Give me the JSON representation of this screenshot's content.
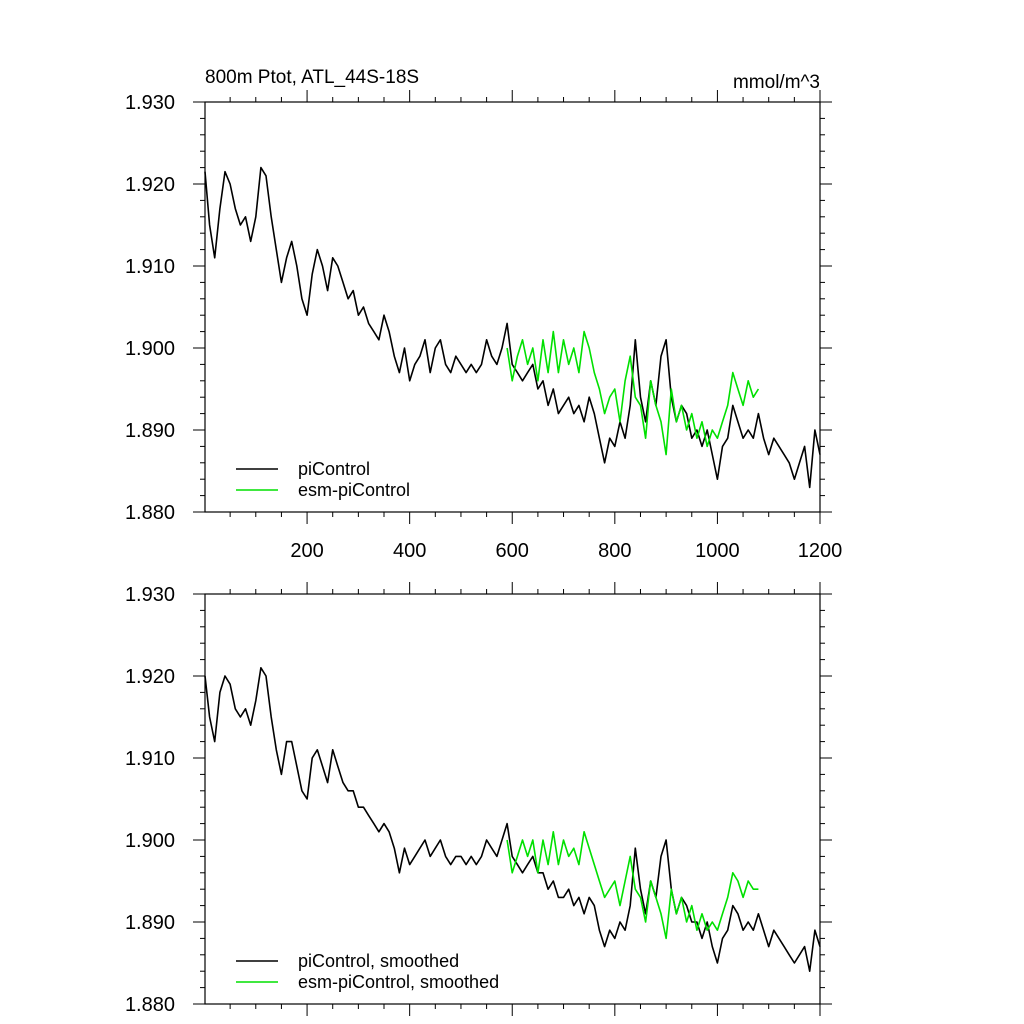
{
  "chart_data": [
    {
      "type": "line",
      "title": "800m Ptot, ATL_44S-18S",
      "units": "mmol/m^3",
      "xlim": [
        1,
        1200
      ],
      "ylim": [
        1.88,
        1.93
      ],
      "xticks": [
        200,
        400,
        600,
        800,
        1000,
        1200
      ],
      "xtick_labels": [
        "200",
        "400",
        "600",
        "800",
        "1000",
        "1200"
      ],
      "yticks": [
        1.88,
        1.89,
        1.9,
        1.91,
        1.92,
        1.93
      ],
      "ytick_labels": [
        "1.880",
        "1.890",
        "1.900",
        "1.910",
        "1.920",
        "1.930"
      ],
      "legend_position": "bottom-left",
      "series": [
        {
          "name": "piControl",
          "color": "#000000",
          "x": [
            1,
            10,
            20,
            30,
            40,
            50,
            60,
            70,
            80,
            90,
            100,
            110,
            120,
            130,
            140,
            150,
            160,
            170,
            180,
            190,
            200,
            210,
            220,
            230,
            240,
            250,
            260,
            270,
            280,
            290,
            300,
            310,
            320,
            330,
            340,
            350,
            360,
            370,
            380,
            390,
            400,
            410,
            420,
            430,
            440,
            450,
            460,
            470,
            480,
            490,
            500,
            510,
            520,
            530,
            540,
            550,
            560,
            570,
            580,
            590,
            600,
            610,
            620,
            630,
            640,
            650,
            660,
            670,
            680,
            690,
            700,
            710,
            720,
            730,
            740,
            750,
            760,
            770,
            780,
            790,
            800,
            810,
            820,
            830,
            840,
            850,
            860,
            870,
            880,
            890,
            900,
            910,
            920,
            930,
            940,
            950,
            960,
            970,
            980,
            990,
            1000,
            1010,
            1020,
            1030,
            1040,
            1050,
            1060,
            1070,
            1080,
            1090,
            1100,
            1110,
            1120,
            1130,
            1140,
            1150,
            1160,
            1170,
            1180,
            1190,
            1200
          ],
          "values": [
            1.9215,
            1.915,
            1.911,
            1.917,
            1.9215,
            1.92,
            1.917,
            1.915,
            1.916,
            1.913,
            1.916,
            1.922,
            1.921,
            1.916,
            1.912,
            1.908,
            1.911,
            1.913,
            1.91,
            1.906,
            1.904,
            1.909,
            1.912,
            1.91,
            1.907,
            1.911,
            1.91,
            1.908,
            1.906,
            1.907,
            1.904,
            1.905,
            1.903,
            1.902,
            1.901,
            1.904,
            1.902,
            1.899,
            1.897,
            1.9,
            1.896,
            1.898,
            1.899,
            1.901,
            1.897,
            1.9,
            1.901,
            1.898,
            1.897,
            1.899,
            1.898,
            1.897,
            1.898,
            1.897,
            1.898,
            1.901,
            1.899,
            1.898,
            1.9,
            1.903,
            1.898,
            1.897,
            1.896,
            1.897,
            1.898,
            1.895,
            1.896,
            1.893,
            1.895,
            1.892,
            1.893,
            1.894,
            1.892,
            1.893,
            1.891,
            1.894,
            1.892,
            1.889,
            1.886,
            1.889,
            1.888,
            1.891,
            1.889,
            1.893,
            1.901,
            1.894,
            1.891,
            1.896,
            1.893,
            1.899,
            1.901,
            1.894,
            1.891,
            1.893,
            1.892,
            1.889,
            1.89,
            1.888,
            1.89,
            1.887,
            1.884,
            1.888,
            1.889,
            1.893,
            1.891,
            1.889,
            1.89,
            1.889,
            1.892,
            1.889,
            1.887,
            1.889,
            1.888,
            1.887,
            1.886,
            1.884,
            1.886,
            1.888,
            1.883,
            1.89,
            1.887
          ]
        },
        {
          "name": "esm-piControl",
          "color": "#00e000",
          "x": [
            590,
            600,
            610,
            620,
            630,
            640,
            650,
            660,
            670,
            680,
            690,
            700,
            710,
            720,
            730,
            740,
            750,
            760,
            770,
            780,
            790,
            800,
            810,
            820,
            830,
            840,
            850,
            860,
            870,
            880,
            890,
            900,
            910,
            920,
            930,
            940,
            950,
            960,
            970,
            980,
            990,
            1000,
            1010,
            1020,
            1030,
            1040,
            1050,
            1060,
            1070,
            1080
          ],
          "values": [
            1.9,
            1.896,
            1.899,
            1.901,
            1.898,
            1.9,
            1.896,
            1.901,
            1.897,
            1.902,
            1.897,
            1.901,
            1.898,
            1.9,
            1.897,
            1.902,
            1.9,
            1.897,
            1.895,
            1.892,
            1.894,
            1.895,
            1.891,
            1.896,
            1.899,
            1.894,
            1.893,
            1.889,
            1.896,
            1.893,
            1.891,
            1.887,
            1.895,
            1.891,
            1.893,
            1.89,
            1.892,
            1.889,
            1.891,
            1.888,
            1.89,
            1.889,
            1.891,
            1.893,
            1.897,
            1.895,
            1.893,
            1.896,
            1.894,
            1.895
          ]
        }
      ]
    },
    {
      "type": "line",
      "title": "",
      "xlim": [
        1,
        1200
      ],
      "ylim": [
        1.88,
        1.93
      ],
      "yticks": [
        1.88,
        1.89,
        1.9,
        1.91,
        1.92,
        1.93
      ],
      "ytick_labels": [
        "1.880",
        "1.890",
        "1.900",
        "1.910",
        "1.920",
        "1.930"
      ],
      "legend_position": "bottom-left",
      "series": [
        {
          "name": "piControl, smoothed",
          "color": "#000000",
          "x": [
            1,
            10,
            20,
            30,
            40,
            50,
            60,
            70,
            80,
            90,
            100,
            110,
            120,
            130,
            140,
            150,
            160,
            170,
            180,
            190,
            200,
            210,
            220,
            230,
            240,
            250,
            260,
            270,
            280,
            290,
            300,
            310,
            320,
            330,
            340,
            350,
            360,
            370,
            380,
            390,
            400,
            410,
            420,
            430,
            440,
            450,
            460,
            470,
            480,
            490,
            500,
            510,
            520,
            530,
            540,
            550,
            560,
            570,
            580,
            590,
            600,
            610,
            620,
            630,
            640,
            650,
            660,
            670,
            680,
            690,
            700,
            710,
            720,
            730,
            740,
            750,
            760,
            770,
            780,
            790,
            800,
            810,
            820,
            830,
            840,
            850,
            860,
            870,
            880,
            890,
            900,
            910,
            920,
            930,
            940,
            950,
            960,
            970,
            980,
            990,
            1000,
            1010,
            1020,
            1030,
            1040,
            1050,
            1060,
            1070,
            1080,
            1090,
            1100,
            1110,
            1120,
            1130,
            1140,
            1150,
            1160,
            1170,
            1180,
            1190,
            1200
          ],
          "values": [
            1.92,
            1.915,
            1.912,
            1.918,
            1.92,
            1.919,
            1.916,
            1.915,
            1.916,
            1.914,
            1.917,
            1.921,
            1.92,
            1.915,
            1.911,
            1.908,
            1.912,
            1.912,
            1.909,
            1.906,
            1.905,
            1.91,
            1.911,
            1.909,
            1.907,
            1.911,
            1.909,
            1.907,
            1.906,
            1.906,
            1.904,
            1.904,
            1.903,
            1.902,
            1.901,
            1.902,
            1.901,
            1.899,
            1.896,
            1.899,
            1.897,
            1.898,
            1.899,
            1.9,
            1.898,
            1.899,
            1.9,
            1.898,
            1.897,
            1.898,
            1.898,
            1.897,
            1.898,
            1.897,
            1.898,
            1.9,
            1.899,
            1.898,
            1.9,
            1.902,
            1.898,
            1.897,
            1.896,
            1.897,
            1.898,
            1.896,
            1.896,
            1.894,
            1.895,
            1.893,
            1.893,
            1.894,
            1.892,
            1.893,
            1.891,
            1.893,
            1.892,
            1.889,
            1.887,
            1.889,
            1.888,
            1.89,
            1.889,
            1.892,
            1.899,
            1.894,
            1.891,
            1.895,
            1.893,
            1.898,
            1.9,
            1.894,
            1.891,
            1.893,
            1.892,
            1.89,
            1.89,
            1.888,
            1.89,
            1.887,
            1.885,
            1.888,
            1.889,
            1.892,
            1.891,
            1.889,
            1.89,
            1.889,
            1.891,
            1.889,
            1.887,
            1.889,
            1.888,
            1.887,
            1.886,
            1.885,
            1.886,
            1.887,
            1.884,
            1.889,
            1.887
          ]
        },
        {
          "name": "esm-piControl, smoothed",
          "color": "#00e000",
          "x": [
            590,
            600,
            610,
            620,
            630,
            640,
            650,
            660,
            670,
            680,
            690,
            700,
            710,
            720,
            730,
            740,
            750,
            760,
            770,
            780,
            790,
            800,
            810,
            820,
            830,
            840,
            850,
            860,
            870,
            880,
            890,
            900,
            910,
            920,
            930,
            940,
            950,
            960,
            970,
            980,
            990,
            1000,
            1010,
            1020,
            1030,
            1040,
            1050,
            1060,
            1070,
            1080
          ],
          "values": [
            1.9,
            1.896,
            1.898,
            1.9,
            1.898,
            1.9,
            1.896,
            1.9,
            1.897,
            1.901,
            1.897,
            1.9,
            1.898,
            1.899,
            1.897,
            1.901,
            1.899,
            1.897,
            1.895,
            1.893,
            1.894,
            1.895,
            1.892,
            1.895,
            1.898,
            1.894,
            1.893,
            1.89,
            1.895,
            1.893,
            1.891,
            1.888,
            1.894,
            1.891,
            1.893,
            1.89,
            1.892,
            1.889,
            1.891,
            1.889,
            1.89,
            1.889,
            1.891,
            1.893,
            1.896,
            1.895,
            1.893,
            1.895,
            1.894,
            1.894
          ]
        }
      ]
    }
  ]
}
